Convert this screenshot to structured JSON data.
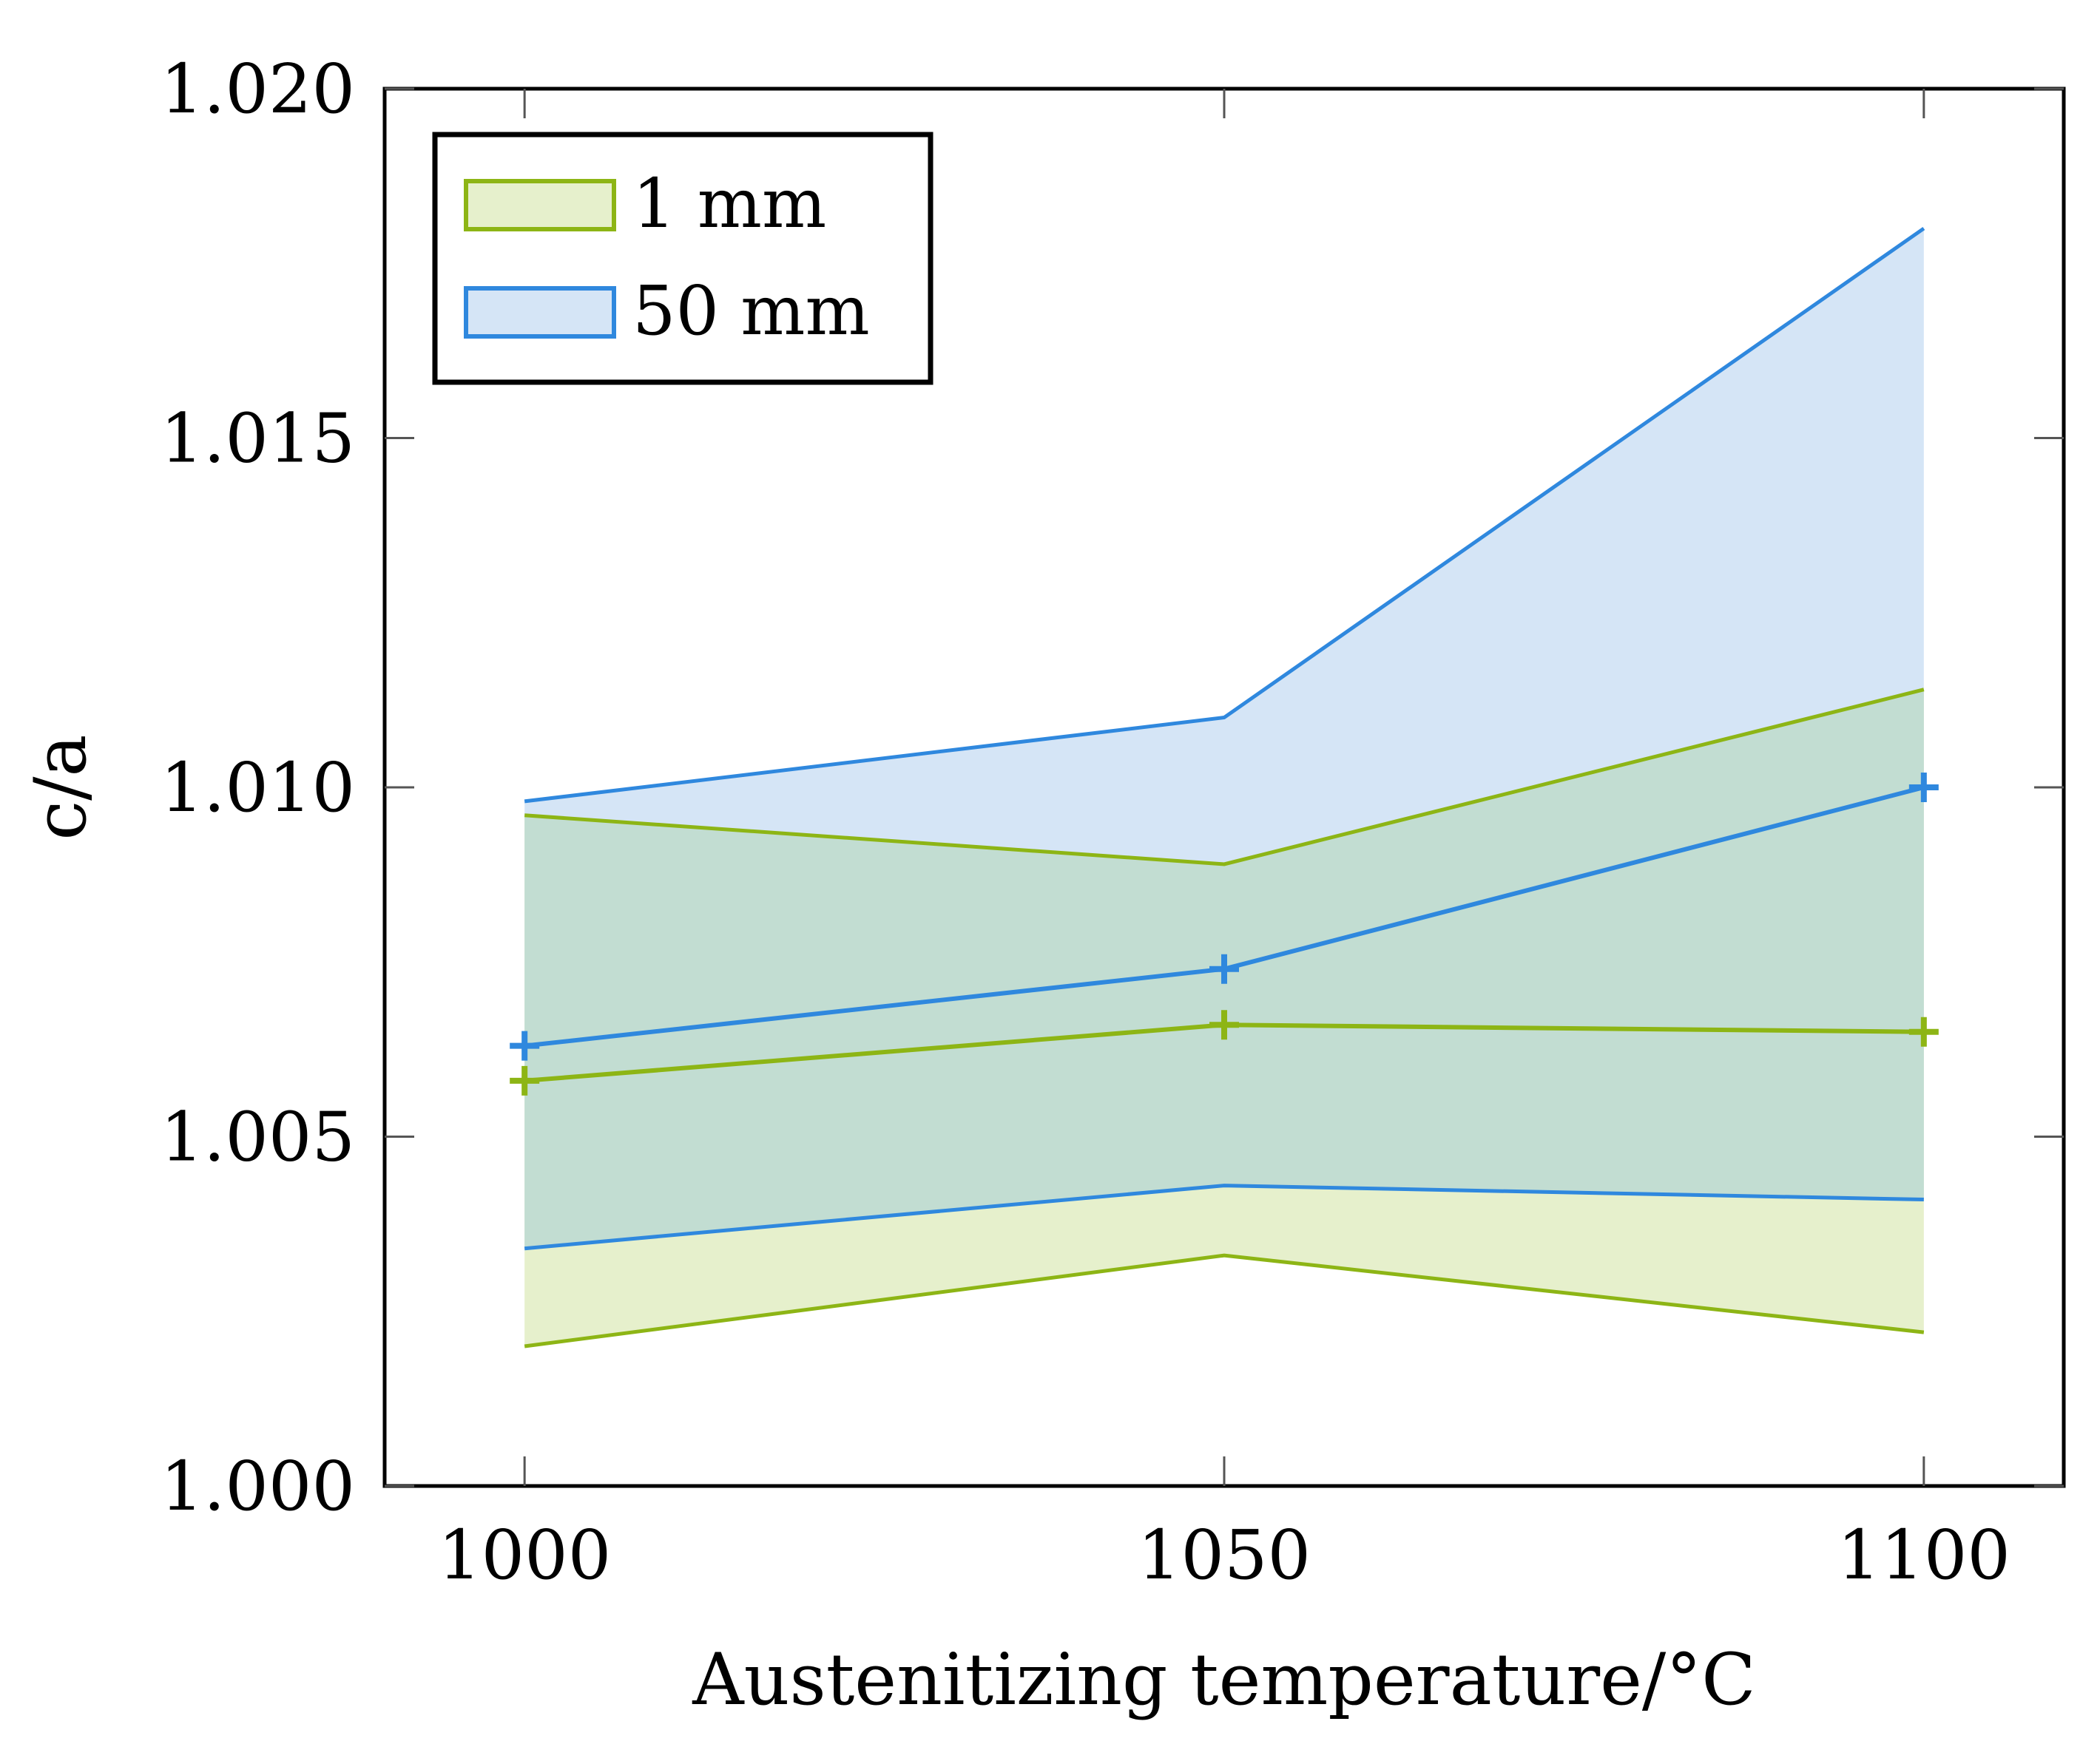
{
  "chart_data": {
    "type": "line",
    "title": "",
    "xlabel": "Austenitizing temperature/°C",
    "ylabel": "c/a",
    "x": [
      1000,
      1050,
      1100
    ],
    "xlim": [
      990,
      1110
    ],
    "ylim": [
      1.0,
      1.02
    ],
    "xticks": [
      "1000",
      "1050",
      "1100"
    ],
    "yticks": [
      "1.000",
      "1.005",
      "1.010",
      "1.015",
      "1.020"
    ],
    "legend_position": "top-left",
    "series": [
      {
        "name": "1 mm",
        "legend_label": "1 mm",
        "color": "#8db515",
        "fill": "#e6f0cc",
        "mean": [
          1.0058,
          1.0066,
          1.0065
        ],
        "upper": [
          1.0096,
          1.0089,
          1.0114
        ],
        "lower": [
          1.002,
          1.0033,
          1.0022
        ]
      },
      {
        "name": "50 mm",
        "legend_label": "50 mm",
        "color": "#2f88de",
        "fill": "#d5e5f6",
        "mean": [
          1.0063,
          1.0074,
          1.01
        ],
        "upper": [
          1.0098,
          1.011,
          1.018
        ],
        "lower": [
          1.0034,
          1.0043,
          1.0041
        ]
      }
    ],
    "overlap_fill": "#c2ddd2"
  }
}
